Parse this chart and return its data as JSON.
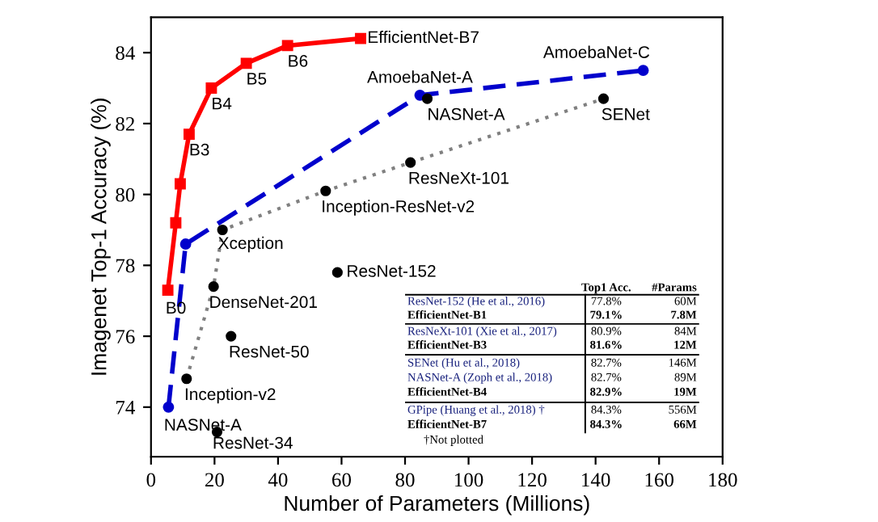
{
  "chart_data": {
    "type": "line",
    "xlabel": "Number of Parameters (Millions)",
    "ylabel": "Imagenet Top-1 Accuracy (%)",
    "xlim": [
      0,
      180
    ],
    "xticks": [
      0,
      20,
      40,
      60,
      80,
      100,
      120,
      140,
      160,
      180
    ],
    "ylim": [
      72.6,
      85
    ],
    "yticks": [
      74,
      76,
      78,
      80,
      82,
      84
    ],
    "grid": false,
    "legend": false,
    "series": [
      {
        "color": "#ff0000",
        "marker": "square",
        "line_style": "solid",
        "x": [
          5.3,
          7.8,
          9.2,
          12,
          19,
          30,
          43,
          66
        ],
        "values": [
          77.3,
          79.2,
          80.3,
          81.7,
          83.0,
          83.7,
          84.2,
          84.4
        ]
      },
      {
        "color": "#0000cc",
        "marker": "circle",
        "line_style": "dashed",
        "x": [
          5.5,
          10.9,
          84.7,
          155
        ],
        "values": [
          74.0,
          78.6,
          82.8,
          83.5
        ]
      },
      {
        "color": "#808080",
        "marker": "none",
        "line_style": "dotted",
        "x": [
          11.2,
          19.7,
          22.5,
          55,
          81.7,
          142.5
        ],
        "values": [
          74.8,
          77.4,
          79.0,
          80.1,
          80.9,
          82.7
        ]
      },
      {
        "type": "scatter",
        "color": "#000000",
        "marker": "circle",
        "x": [
          11.2,
          19.7,
          22.5,
          55,
          81.7,
          142.5,
          87,
          58.7,
          25.2,
          20.8
        ],
        "values": [
          74.8,
          77.4,
          79.0,
          80.1,
          80.9,
          82.7,
          82.7,
          77.8,
          76.0,
          73.3
        ]
      }
    ],
    "annotations": [
      {
        "text": "EfficientNet-B7",
        "x": 66,
        "y": 84.4
      },
      {
        "text": "B6",
        "x": 43,
        "y": 84.2
      },
      {
        "text": "B5",
        "x": 30,
        "y": 83.7
      },
      {
        "text": "B4",
        "x": 19,
        "y": 83.0
      },
      {
        "text": "B3",
        "x": 12,
        "y": 81.7
      },
      {
        "text": "B0",
        "x": 5.3,
        "y": 77.3
      },
      {
        "text": "AmoebaNet-A",
        "x": 84.7,
        "y": 82.8
      },
      {
        "text": "NASNet-A",
        "x": 87,
        "y": 82.7
      },
      {
        "text": "AmoebaNet-C",
        "x": 155,
        "y": 83.5
      },
      {
        "text": "SENet",
        "x": 142.5,
        "y": 82.7
      },
      {
        "text": "ResNeXt-101",
        "x": 81.7,
        "y": 80.9
      },
      {
        "text": "Inception-ResNet-v2",
        "x": 55,
        "y": 80.1
      },
      {
        "text": "Xception",
        "x": 22.5,
        "y": 79.0
      },
      {
        "text": "DenseNet-201",
        "x": 19.7,
        "y": 77.4
      },
      {
        "text": "ResNet-152",
        "x": 58.7,
        "y": 77.8
      },
      {
        "text": "ResNet-50",
        "x": 25.2,
        "y": 76.0
      },
      {
        "text": "Inception-v2",
        "x": 11.2,
        "y": 74.8
      },
      {
        "text": "NASNet-A",
        "x": 5.5,
        "y": 74.0
      },
      {
        "text": "ResNet-34",
        "x": 20.8,
        "y": 73.3
      },
      "Top1 Acc.",
      "#Params",
      "ResNet-152 (He et al., 2016)",
      "77.8%",
      "60M",
      "EfficientNet-B1",
      "79.1%",
      "7.8M",
      "ResNeXt-101 (Xie et al., 2017)",
      "80.9%",
      "84M",
      "EfficientNet-B3",
      "81.6%",
      "12M",
      "SENet (Hu et al., 2018)",
      "82.7%",
      "146M",
      "NASNet-A (Zoph et al., 2018)",
      "82.7%",
      "89M",
      "EfficientNet-B4",
      "82.9%",
      "19M",
      "GPipe (Huang et al., 2018) †",
      "84.3%",
      "556M",
      "EfficientNet-B7",
      "84.3%",
      "66M",
      "†Not plotted"
    ]
  }
}
